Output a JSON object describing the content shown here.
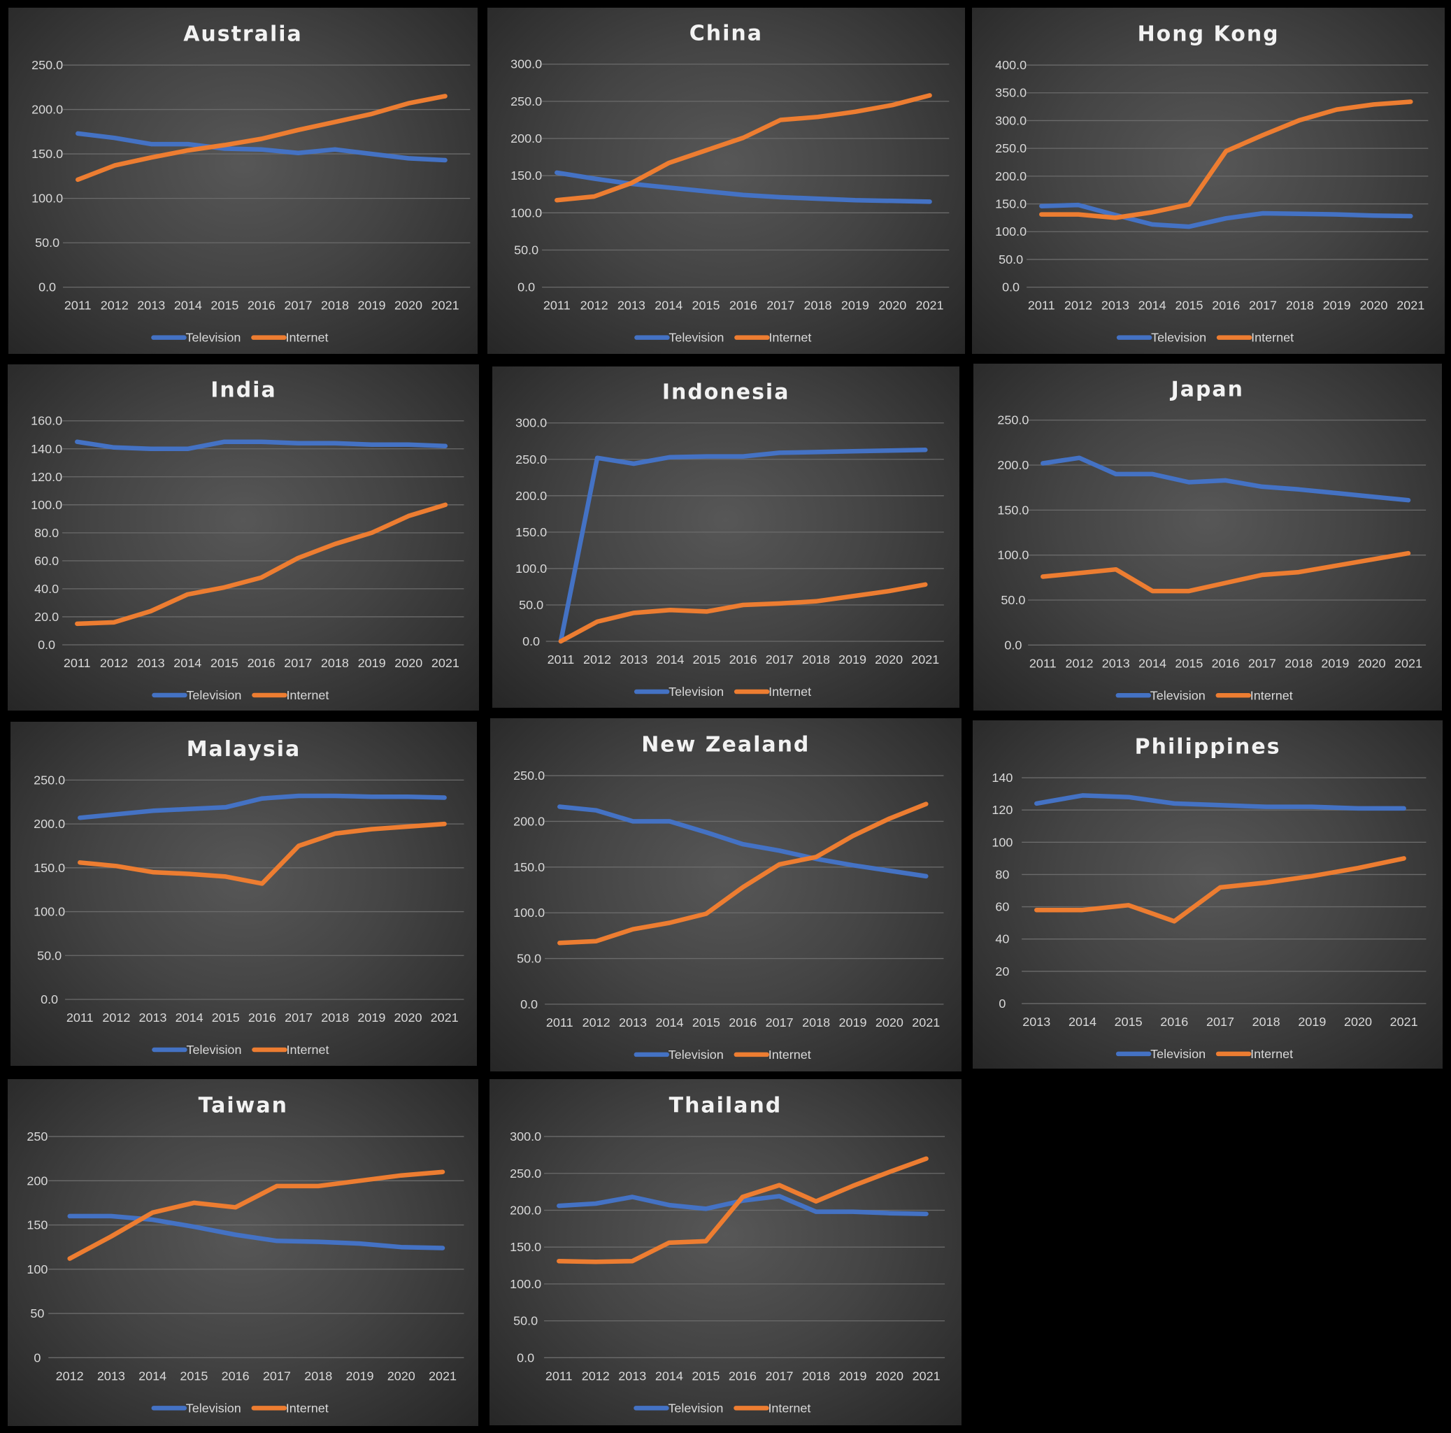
{
  "colors": {
    "television": "#4472C4",
    "internet": "#ED7D31",
    "text": "#D9D9D9",
    "title": "#F2F2F2",
    "grid": "#6B6B6B"
  },
  "chart_data": [
    {
      "type": "line",
      "title": "Australia",
      "legend": "bottom",
      "grid": true,
      "x": [
        "2011",
        "2012",
        "2013",
        "2014",
        "2015",
        "2016",
        "2017",
        "2018",
        "2019",
        "2020",
        "2021"
      ],
      "yticks": [
        "0.0",
        "50.0",
        "100.0",
        "150.0",
        "200.0",
        "250.0"
      ],
      "ylim": [
        0,
        250
      ],
      "series": [
        {
          "name": "Television",
          "values": [
            173,
            168,
            161,
            161,
            156,
            155,
            151,
            155,
            150,
            145,
            143
          ]
        },
        {
          "name": "Internet",
          "values": [
            121,
            137,
            146,
            154,
            160,
            167,
            177,
            186,
            195,
            207,
            215
          ]
        }
      ]
    },
    {
      "type": "line",
      "title": "China",
      "legend": "bottom",
      "grid": true,
      "x": [
        "2011",
        "2012",
        "2013",
        "2014",
        "2015",
        "2016",
        "2017",
        "2018",
        "2019",
        "2020",
        "2021"
      ],
      "yticks": [
        "0.0",
        "50.0",
        "100.0",
        "150.0",
        "200.0",
        "250.0",
        "300.0"
      ],
      "ylim": [
        0,
        300
      ],
      "series": [
        {
          "name": "Television",
          "values": [
            154,
            146,
            139,
            134,
            129,
            124,
            121,
            119,
            117,
            116,
            115
          ]
        },
        {
          "name": "Internet",
          "values": [
            117,
            122,
            140,
            167,
            184,
            201,
            225,
            229,
            236,
            245,
            258
          ]
        }
      ]
    },
    {
      "type": "line",
      "title": "Hong Kong",
      "legend": "bottom",
      "grid": true,
      "x": [
        "2011",
        "2012",
        "2013",
        "2014",
        "2015",
        "2016",
        "2017",
        "2018",
        "2019",
        "2020",
        "2021"
      ],
      "yticks": [
        "0.0",
        "50.0",
        "100.0",
        "150.0",
        "200.0",
        "250.0",
        "300.0",
        "350.0",
        "400.0"
      ],
      "ylim": [
        0,
        400
      ],
      "series": [
        {
          "name": "Television",
          "values": [
            146,
            148,
            130,
            113,
            109,
            124,
            133,
            132,
            131,
            129,
            128
          ]
        },
        {
          "name": "Internet",
          "values": [
            131,
            131,
            125,
            135,
            149,
            245,
            274,
            301,
            320,
            329,
            334
          ]
        }
      ]
    },
    {
      "type": "line",
      "title": "India",
      "legend": "bottom",
      "grid": true,
      "x": [
        "2011",
        "2012",
        "2013",
        "2014",
        "2015",
        "2016",
        "2017",
        "2018",
        "2019",
        "2020",
        "2021"
      ],
      "yticks": [
        "0.0",
        "20.0",
        "40.0",
        "60.0",
        "80.0",
        "100.0",
        "120.0",
        "140.0",
        "160.0"
      ],
      "ylim": [
        0,
        160
      ],
      "series": [
        {
          "name": "Television",
          "values": [
            145,
            141,
            140,
            140,
            145,
            145,
            144,
            144,
            143,
            143,
            142
          ]
        },
        {
          "name": "Internet",
          "values": [
            15,
            16,
            24,
            36,
            41,
            48,
            62,
            72,
            80,
            92,
            100
          ]
        }
      ]
    },
    {
      "type": "line",
      "title": "Indonesia",
      "legend": "bottom",
      "grid": true,
      "x": [
        "2011",
        "2012",
        "2013",
        "2014",
        "2015",
        "2016",
        "2017",
        "2018",
        "2019",
        "2020",
        "2021"
      ],
      "yticks": [
        "0.0",
        "50.0",
        "100.0",
        "150.0",
        "200.0",
        "250.0",
        "300.0"
      ],
      "ylim": [
        0,
        300
      ],
      "series": [
        {
          "name": "Television",
          "values": [
            0,
            252,
            244,
            253,
            254,
            254,
            259,
            260,
            261,
            262,
            263
          ]
        },
        {
          "name": "Internet",
          "values": [
            0,
            27,
            39,
            43,
            41,
            50,
            52,
            55,
            62,
            69,
            78
          ]
        }
      ]
    },
    {
      "type": "line",
      "title": "Japan",
      "legend": "bottom",
      "grid": true,
      "x": [
        "2011",
        "2012",
        "2013",
        "2014",
        "2015",
        "2016",
        "2017",
        "2018",
        "2019",
        "2020",
        "2021"
      ],
      "yticks": [
        "0.0",
        "50.0",
        "100.0",
        "150.0",
        "200.0",
        "250.0"
      ],
      "ylim": [
        0,
        250
      ],
      "series": [
        {
          "name": "Television",
          "values": [
            202,
            208,
            190,
            190,
            181,
            183,
            176,
            173,
            169,
            165,
            161
          ]
        },
        {
          "name": "Internet",
          "values": [
            76,
            80,
            84,
            60,
            60,
            69,
            78,
            81,
            88,
            95,
            102
          ]
        }
      ]
    },
    {
      "type": "line",
      "title": "Malaysia",
      "legend": "bottom",
      "grid": true,
      "x": [
        "2011",
        "2012",
        "2013",
        "2014",
        "2015",
        "2016",
        "2017",
        "2018",
        "2019",
        "2020",
        "2021"
      ],
      "yticks": [
        "0.0",
        "50.0",
        "100.0",
        "150.0",
        "200.0",
        "250.0"
      ],
      "ylim": [
        0,
        250
      ],
      "series": [
        {
          "name": "Television",
          "values": [
            207,
            211,
            215,
            217,
            219,
            229,
            232,
            232,
            231,
            231,
            230
          ]
        },
        {
          "name": "Internet",
          "values": [
            156,
            152,
            145,
            143,
            140,
            132,
            175,
            189,
            194,
            197,
            200
          ]
        }
      ]
    },
    {
      "type": "line",
      "title": "New Zealand",
      "legend": "bottom",
      "grid": true,
      "x": [
        "2011",
        "2012",
        "2013",
        "2014",
        "2015",
        "2016",
        "2017",
        "2018",
        "2019",
        "2020",
        "2021"
      ],
      "yticks": [
        "0.0",
        "50.0",
        "100.0",
        "150.0",
        "200.0",
        "250.0"
      ],
      "ylim": [
        0,
        250
      ],
      "series": [
        {
          "name": "Television",
          "values": [
            216,
            212,
            200,
            200,
            188,
            175,
            168,
            159,
            152,
            146,
            140
          ]
        },
        {
          "name": "Internet",
          "values": [
            67,
            69,
            82,
            89,
            99,
            128,
            153,
            161,
            184,
            203,
            219
          ]
        }
      ]
    },
    {
      "type": "line",
      "title": "Philippines",
      "legend": "bottom",
      "grid": true,
      "x": [
        "2013",
        "2014",
        "2015",
        "2016",
        "2017",
        "2018",
        "2019",
        "2020",
        "2021"
      ],
      "yticks": [
        "0",
        "20",
        "40",
        "60",
        "80",
        "100",
        "120",
        "140"
      ],
      "ylim": [
        0,
        140
      ],
      "series": [
        {
          "name": "Television",
          "values": [
            124,
            129,
            128,
            124,
            123,
            122,
            122,
            121,
            121
          ]
        },
        {
          "name": "Internet",
          "values": [
            58,
            58,
            61,
            51,
            72,
            75,
            79,
            84,
            90
          ]
        }
      ]
    },
    {
      "type": "line",
      "title": "Taiwan",
      "legend": "bottom",
      "grid": true,
      "x": [
        "2012",
        "2013",
        "2014",
        "2015",
        "2016",
        "2017",
        "2018",
        "2019",
        "2020",
        "2021"
      ],
      "yticks": [
        "0",
        "50",
        "100",
        "150",
        "200",
        "250"
      ],
      "ylim": [
        0,
        250
      ],
      "series": [
        {
          "name": "Television",
          "values": [
            160,
            160,
            156,
            148,
            139,
            132,
            131,
            129,
            125,
            124
          ]
        },
        {
          "name": "Internet",
          "values": [
            112,
            137,
            164,
            175,
            170,
            194,
            194,
            200,
            206,
            210
          ]
        }
      ]
    },
    {
      "type": "line",
      "title": "Thailand",
      "legend": "bottom",
      "grid": true,
      "x": [
        "2011",
        "2012",
        "2013",
        "2014",
        "2015",
        "2016",
        "2017",
        "2018",
        "2019",
        "2020",
        "2021"
      ],
      "yticks": [
        "0.0",
        "50.0",
        "100.0",
        "150.0",
        "200.0",
        "250.0",
        "300.0"
      ],
      "ylim": [
        0,
        300
      ],
      "series": [
        {
          "name": "Television",
          "values": [
            206,
            209,
            218,
            207,
            202,
            213,
            219,
            198,
            198,
            196,
            195
          ]
        },
        {
          "name": "Internet",
          "values": [
            131,
            130,
            131,
            156,
            158,
            218,
            234,
            212,
            233,
            252,
            270
          ]
        }
      ]
    }
  ]
}
